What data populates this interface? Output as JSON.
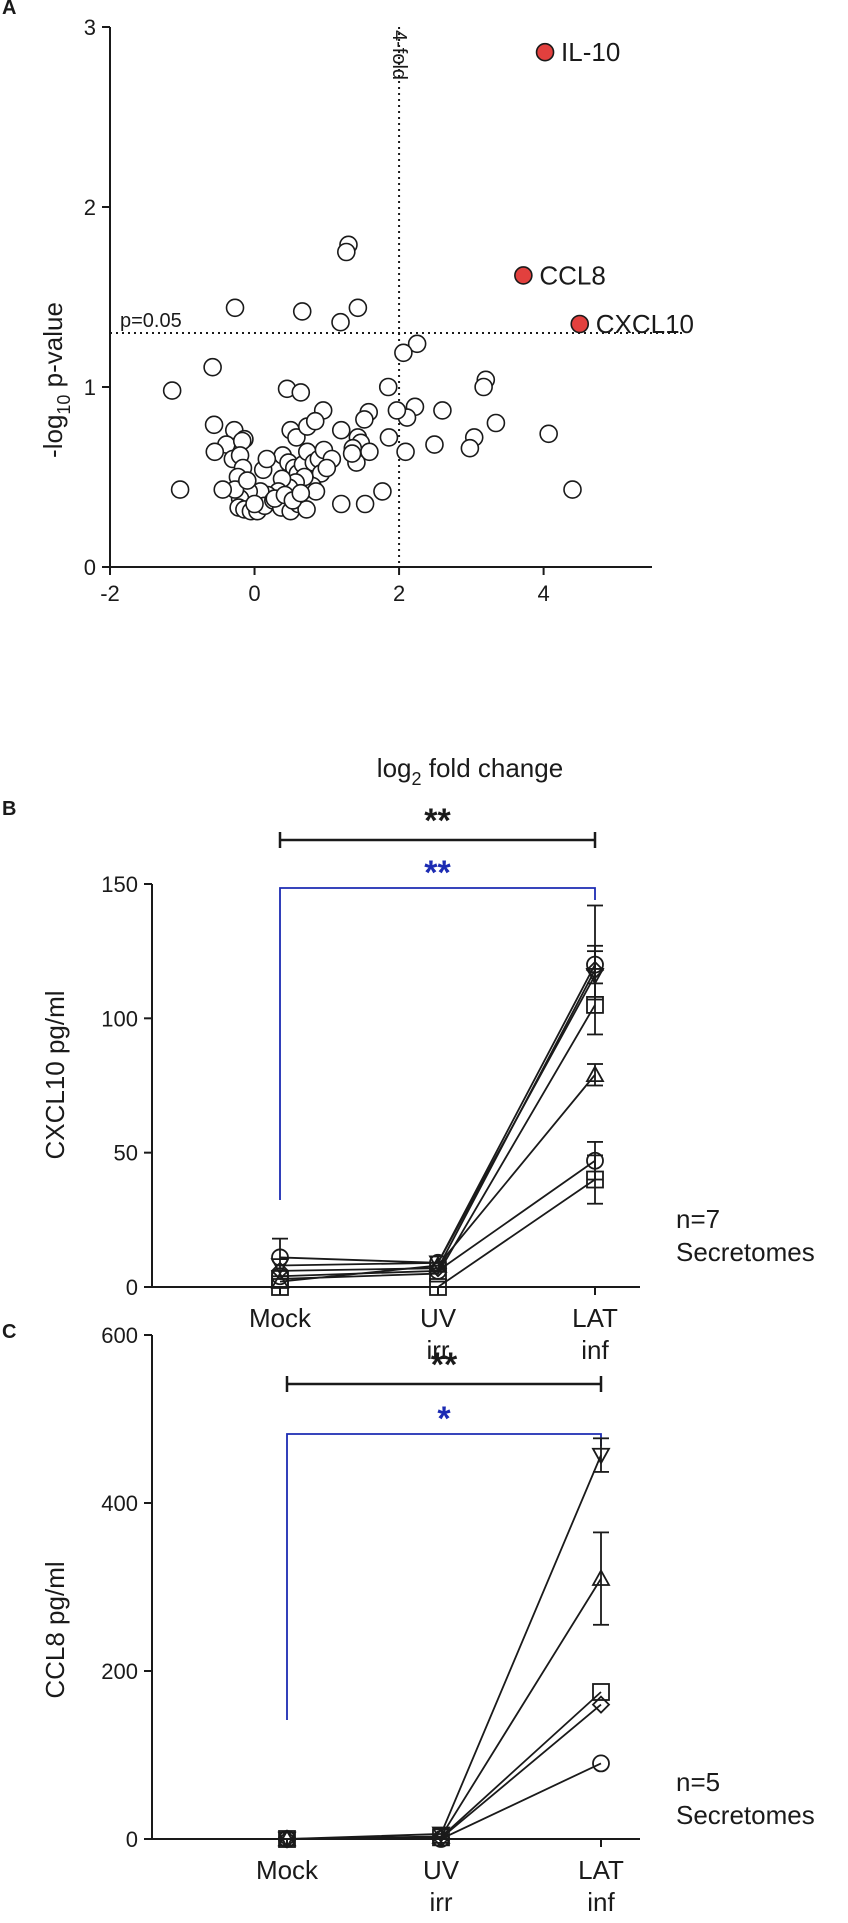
{
  "colors": {
    "ink": "#1a1a1a",
    "highlight": "#e2403e",
    "blue": "#1c2bb3",
    "white": "#ffffff"
  },
  "chart_data": [
    {
      "panel": "A",
      "type": "scatter",
      "xlabel": "log",
      "xlabel_sub": "2",
      "xlabel_rest": " fold change",
      "ylabel": "-log",
      "ylabel_sub": "10",
      "ylabel_rest": " p-value",
      "xlim": [
        -2,
        5.5
      ],
      "ylim": [
        0,
        3
      ],
      "xticks": [
        -2,
        0,
        2,
        4
      ],
      "yticks": [
        0,
        1,
        2,
        3
      ],
      "threshold_x": {
        "value": 2,
        "label": "4-fold"
      },
      "threshold_y": {
        "value": 1.3,
        "label": "p=0.05"
      },
      "highlighted": [
        {
          "label": "IL-10",
          "x": 4.02,
          "y": 2.86
        },
        {
          "label": "CCL8",
          "x": 3.72,
          "y": 1.62
        },
        {
          "label": "CXCL10",
          "x": 4.5,
          "y": 1.35
        }
      ],
      "points": [
        [
          1.3,
          1.79
        ],
        [
          1.27,
          1.75
        ],
        [
          -0.27,
          1.44
        ],
        [
          0.66,
          1.42
        ],
        [
          1.43,
          1.44
        ],
        [
          1.19,
          1.36
        ],
        [
          2.25,
          1.24
        ],
        [
          2.06,
          1.19
        ],
        [
          -0.58,
          1.11
        ],
        [
          -1.14,
          0.98
        ],
        [
          3.2,
          1.04
        ],
        [
          3.17,
          1.0
        ],
        [
          1.85,
          1.0
        ],
        [
          0.45,
          0.99
        ],
        [
          0.64,
          0.97
        ],
        [
          3.34,
          0.8
        ],
        [
          2.6,
          0.87
        ],
        [
          2.22,
          0.89
        ],
        [
          2.11,
          0.83
        ],
        [
          1.97,
          0.87
        ],
        [
          1.58,
          0.86
        ],
        [
          1.52,
          0.82
        ],
        [
          0.95,
          0.87
        ],
        [
          -0.56,
          0.79
        ],
        [
          -0.28,
          0.76
        ],
        [
          -0.39,
          0.68
        ],
        [
          -0.14,
          0.71
        ],
        [
          -0.17,
          0.7
        ],
        [
          0.5,
          0.76
        ],
        [
          0.58,
          0.72
        ],
        [
          0.73,
          0.78
        ],
        [
          0.84,
          0.81
        ],
        [
          1.2,
          0.76
        ],
        [
          1.43,
          0.72
        ],
        [
          1.47,
          0.69
        ],
        [
          1.36,
          0.66
        ],
        [
          1.59,
          0.64
        ],
        [
          1.86,
          0.72
        ],
        [
          2.09,
          0.64
        ],
        [
          2.49,
          0.68
        ],
        [
          3.04,
          0.72
        ],
        [
          2.98,
          0.66
        ],
        [
          4.07,
          0.74
        ],
        [
          4.4,
          0.43
        ],
        [
          -0.55,
          0.64
        ],
        [
          -0.3,
          0.6
        ],
        [
          -0.2,
          0.62
        ],
        [
          -0.16,
          0.55
        ],
        [
          -0.23,
          0.5
        ],
        [
          -0.13,
          0.45
        ],
        [
          -0.03,
          0.39
        ],
        [
          0.12,
          0.54
        ],
        [
          0.39,
          0.62
        ],
        [
          0.47,
          0.58
        ],
        [
          0.55,
          0.55
        ],
        [
          0.6,
          0.52
        ],
        [
          0.67,
          0.57
        ],
        [
          0.73,
          0.64
        ],
        [
          0.82,
          0.58
        ],
        [
          0.89,
          0.6
        ],
        [
          0.96,
          0.65
        ],
        [
          1.07,
          0.6
        ],
        [
          0.92,
          0.52
        ],
        [
          0.8,
          0.45
        ],
        [
          0.69,
          0.5
        ],
        [
          0.57,
          0.47
        ],
        [
          0.48,
          0.44
        ],
        [
          0.38,
          0.49
        ],
        [
          0.33,
          0.42
        ],
        [
          0.18,
          0.4
        ],
        [
          0.08,
          0.42
        ],
        [
          -0.08,
          0.42
        ],
        [
          -0.2,
          0.38
        ],
        [
          -0.27,
          0.43
        ],
        [
          -0.44,
          0.43
        ],
        [
          -1.03,
          0.43
        ],
        [
          -0.22,
          0.33
        ],
        [
          -0.14,
          0.32
        ],
        [
          -0.05,
          0.31
        ],
        [
          0.04,
          0.31
        ],
        [
          0.14,
          0.34
        ],
        [
          0.26,
          0.37
        ],
        [
          0.37,
          0.33
        ],
        [
          0.5,
          0.31
        ],
        [
          0.61,
          0.35
        ],
        [
          0.72,
          0.32
        ],
        [
          0.85,
          0.42
        ],
        [
          1.0,
          0.55
        ],
        [
          1.41,
          0.58
        ],
        [
          1.2,
          0.35
        ],
        [
          1.53,
          0.35
        ],
        [
          1.77,
          0.42
        ],
        [
          0.28,
          0.38
        ],
        [
          0.42,
          0.4
        ],
        [
          0.53,
          0.37
        ],
        [
          0.64,
          0.41
        ],
        [
          0.17,
          0.6
        ],
        [
          1.35,
          0.63
        ],
        [
          -0.1,
          0.48
        ],
        [
          0.0,
          0.35
        ]
      ]
    },
    {
      "panel": "B",
      "type": "line",
      "ylabel": "CXCL10 pg/ml",
      "categories": [
        "Mock",
        "UV\nirr",
        "LAT\ninf"
      ],
      "ylim": [
        0,
        150
      ],
      "yticks": [
        0,
        50,
        100,
        150
      ],
      "n_label": "n=7",
      "n_label2": "Secretomes",
      "significance": [
        {
          "label": "**",
          "color": "black",
          "style": "bracket"
        },
        {
          "label": "**",
          "color": "blue",
          "style": "bracket"
        }
      ],
      "series": [
        {
          "name": "d1",
          "marker": "circle",
          "values": [
            11,
            9,
            120
          ],
          "err": [
            7,
            0,
            7
          ]
        },
        {
          "name": "d2",
          "marker": "down-triangle",
          "values": [
            8,
            9,
            116
          ],
          "err": [
            0,
            0,
            9
          ]
        },
        {
          "name": "d3",
          "marker": "diamond",
          "values": [
            6,
            7,
            118
          ],
          "err": [
            0,
            0,
            24
          ]
        },
        {
          "name": "d4",
          "marker": "square",
          "values": [
            3,
            5,
            105
          ],
          "err": [
            0,
            0,
            0
          ]
        },
        {
          "name": "d5",
          "marker": "triangle",
          "values": [
            2,
            8,
            79
          ],
          "err": [
            0,
            0,
            4
          ]
        },
        {
          "name": "d6",
          "marker": "circle",
          "values": [
            4,
            6,
            47
          ],
          "err": [
            0,
            0,
            7
          ]
        },
        {
          "name": "d7",
          "marker": "square",
          "values": [
            0,
            0,
            40
          ],
          "err": [
            0,
            0,
            9
          ]
        }
      ]
    },
    {
      "panel": "C",
      "type": "line",
      "ylabel": "CCL8 pg/ml",
      "categories": [
        "Mock",
        "UV\nirr",
        "LAT\ninf"
      ],
      "ylim": [
        0,
        600
      ],
      "yticks": [
        0,
        200,
        400,
        600
      ],
      "n_label": "n=5",
      "n_label2": "Secretomes",
      "significance": [
        {
          "label": "**",
          "color": "black",
          "style": "bracket"
        },
        {
          "label": "*",
          "color": "blue",
          "style": "bracket"
        }
      ],
      "series": [
        {
          "name": "d1",
          "marker": "down-triangle",
          "values": [
            0,
            6,
            457
          ],
          "err": [
            0,
            0,
            20
          ]
        },
        {
          "name": "d2",
          "marker": "triangle",
          "values": [
            0,
            3,
            310
          ],
          "err": [
            0,
            0,
            55
          ]
        },
        {
          "name": "d3",
          "marker": "square",
          "values": [
            0,
            2,
            175
          ],
          "err": [
            0,
            0,
            0
          ]
        },
        {
          "name": "d4",
          "marker": "diamond",
          "values": [
            0,
            1,
            160
          ],
          "err": [
            0,
            0,
            0
          ]
        },
        {
          "name": "d5",
          "marker": "circle",
          "values": [
            0,
            0,
            90
          ],
          "err": [
            0,
            0,
            0
          ]
        }
      ]
    }
  ]
}
